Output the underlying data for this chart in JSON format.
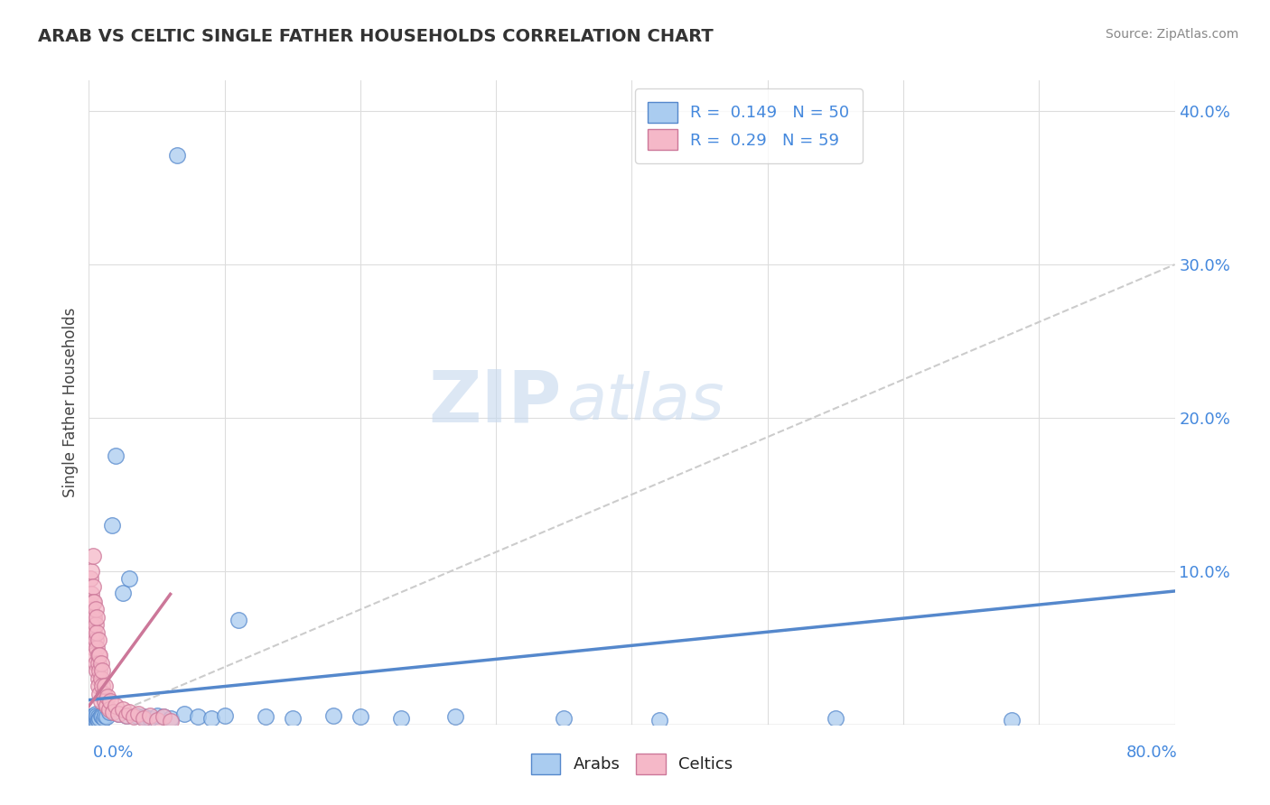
{
  "title": "ARAB VS CELTIC SINGLE FATHER HOUSEHOLDS CORRELATION CHART",
  "source": "Source: ZipAtlas.com",
  "ylabel": "Single Father Households",
  "xlim": [
    0,
    0.8
  ],
  "ylim": [
    0,
    0.42
  ],
  "yticks": [
    0.0,
    0.1,
    0.2,
    0.3,
    0.4
  ],
  "ytick_labels": [
    "",
    "10.0%",
    "20.0%",
    "30.0%",
    "40.0%"
  ],
  "arab_color": "#aaccf0",
  "arab_color_dark": "#5588cc",
  "celtic_color": "#f5b8c8",
  "celtic_color_dark": "#cc7799",
  "arab_R": 0.149,
  "arab_N": 50,
  "celtic_R": 0.29,
  "celtic_N": 59,
  "watermark_zip": "ZIP",
  "watermark_atlas": "atlas",
  "background_color": "#ffffff",
  "arab_line_x": [
    0.0,
    0.8
  ],
  "arab_line_y": [
    0.016,
    0.087
  ],
  "celtic_line_x": [
    0.0,
    0.06
  ],
  "celtic_line_y": [
    0.012,
    0.085
  ],
  "diag_line_x": [
    0.0,
    0.8
  ],
  "diag_line_y": [
    0.0,
    0.3
  ],
  "arab_scatter_x": [
    0.001,
    0.002,
    0.002,
    0.003,
    0.003,
    0.003,
    0.004,
    0.004,
    0.005,
    0.005,
    0.005,
    0.006,
    0.006,
    0.007,
    0.007,
    0.008,
    0.009,
    0.01,
    0.011,
    0.012,
    0.013,
    0.015,
    0.017,
    0.02,
    0.022,
    0.025,
    0.028,
    0.03,
    0.035,
    0.04,
    0.045,
    0.05,
    0.055,
    0.06,
    0.065,
    0.07,
    0.08,
    0.09,
    0.1,
    0.11,
    0.13,
    0.15,
    0.18,
    0.2,
    0.23,
    0.27,
    0.35,
    0.42,
    0.55,
    0.68
  ],
  "arab_scatter_y": [
    0.005,
    0.003,
    0.004,
    0.002,
    0.003,
    0.005,
    0.004,
    0.006,
    0.003,
    0.005,
    0.007,
    0.004,
    0.006,
    0.005,
    0.003,
    0.004,
    0.006,
    0.005,
    0.004,
    0.006,
    0.005,
    0.008,
    0.13,
    0.175,
    0.007,
    0.086,
    0.006,
    0.095,
    0.006,
    0.005,
    0.004,
    0.006,
    0.005,
    0.004,
    0.371,
    0.007,
    0.005,
    0.004,
    0.006,
    0.068,
    0.005,
    0.004,
    0.006,
    0.005,
    0.004,
    0.005,
    0.004,
    0.003,
    0.004,
    0.003
  ],
  "celtic_scatter_x": [
    0.001,
    0.001,
    0.001,
    0.002,
    0.002,
    0.002,
    0.002,
    0.003,
    0.003,
    0.003,
    0.003,
    0.003,
    0.003,
    0.004,
    0.004,
    0.004,
    0.004,
    0.004,
    0.005,
    0.005,
    0.005,
    0.005,
    0.006,
    0.006,
    0.006,
    0.006,
    0.007,
    0.007,
    0.007,
    0.007,
    0.007,
    0.008,
    0.008,
    0.008,
    0.009,
    0.009,
    0.009,
    0.01,
    0.01,
    0.011,
    0.012,
    0.012,
    0.013,
    0.014,
    0.015,
    0.016,
    0.018,
    0.02,
    0.022,
    0.025,
    0.028,
    0.03,
    0.033,
    0.036,
    0.04,
    0.045,
    0.05,
    0.055,
    0.06
  ],
  "celtic_scatter_y": [
    0.068,
    0.078,
    0.095,
    0.065,
    0.075,
    0.085,
    0.1,
    0.06,
    0.07,
    0.08,
    0.09,
    0.11,
    0.055,
    0.06,
    0.07,
    0.08,
    0.05,
    0.045,
    0.055,
    0.065,
    0.075,
    0.04,
    0.05,
    0.06,
    0.07,
    0.035,
    0.045,
    0.055,
    0.03,
    0.04,
    0.025,
    0.035,
    0.045,
    0.02,
    0.03,
    0.04,
    0.015,
    0.025,
    0.035,
    0.02,
    0.015,
    0.025,
    0.012,
    0.018,
    0.01,
    0.015,
    0.008,
    0.012,
    0.007,
    0.01,
    0.006,
    0.008,
    0.005,
    0.007,
    0.004,
    0.006,
    0.003,
    0.005,
    0.002
  ]
}
